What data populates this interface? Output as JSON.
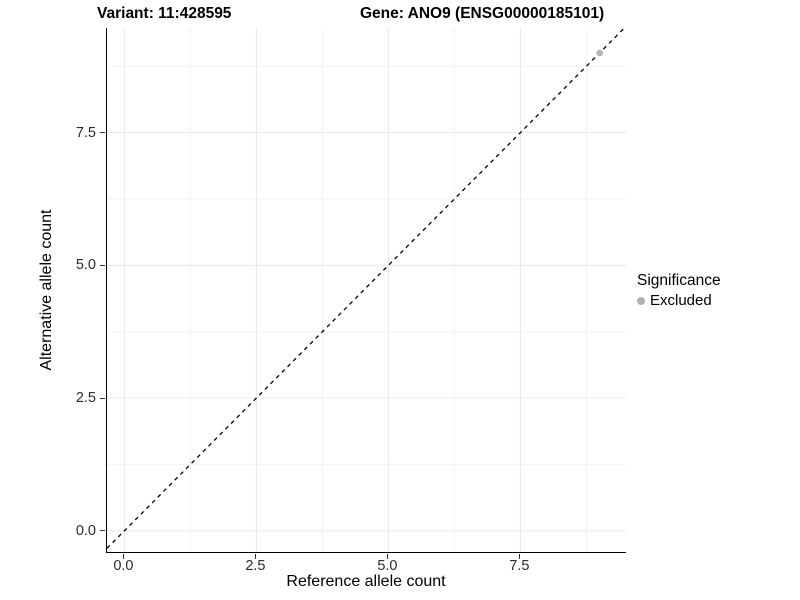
{
  "titles": {
    "left": "Variant: 11:428595",
    "right": "Gene: ANO9 (ENSG00000185101)"
  },
  "chart_data": {
    "type": "scatter",
    "xlabel": "Reference allele count",
    "ylabel": "Alternative allele count",
    "xlim": [
      -0.33,
      9.5
    ],
    "ylim": [
      -0.4,
      9.47
    ],
    "x_ticks": [
      0.0,
      2.5,
      5.0,
      7.5
    ],
    "y_ticks": [
      0.0,
      2.5,
      5.0,
      7.5
    ],
    "x_tick_labels": [
      "0.0",
      "2.5",
      "5.0",
      "7.5"
    ],
    "y_tick_labels": [
      "0.0",
      "2.5",
      "5.0",
      "7.5"
    ],
    "x_minor": [
      1.25,
      3.75,
      6.25,
      8.75
    ],
    "y_minor": [
      1.25,
      3.75,
      6.25,
      8.75
    ],
    "grid": true,
    "points": [
      {
        "x": 9,
        "y": 9,
        "series": "Excluded"
      }
    ],
    "reference_line": {
      "type": "identity",
      "slope": 1,
      "intercept": 0,
      "style": "dashed"
    },
    "legend": {
      "title": "Significance",
      "position": "right",
      "items": [
        {
          "label": "Excluded",
          "marker": "circle",
          "color": "#b0b0b0"
        }
      ]
    },
    "colors": {
      "grid_major": "#e8e8e8",
      "grid_minor": "#f2f2f2",
      "point": "#b4b4b4",
      "reference_line": "#000000",
      "axis_line": "#000000",
      "tick_label": "#2b2b2b"
    }
  }
}
